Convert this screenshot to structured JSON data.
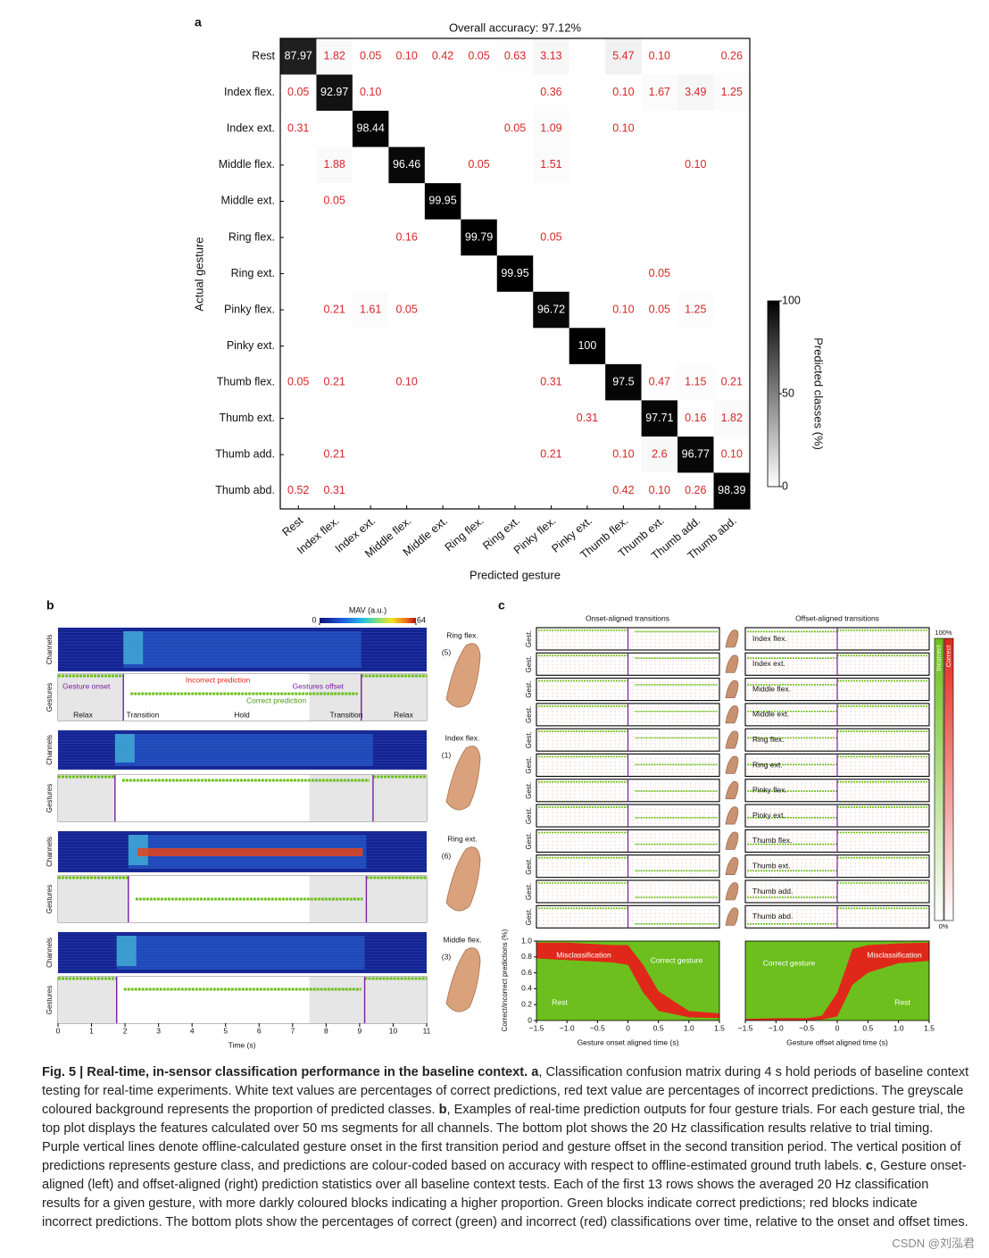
{
  "panel_a": {
    "label": "a",
    "title": "Overall accuracy: 97.12%",
    "xlabel": "Predicted gesture",
    "ylabel": "Actual gesture",
    "categories": [
      "Rest",
      "Index flex.",
      "Index ext.",
      "Middle flex.",
      "Middle ext.",
      "Ring flex.",
      "Ring ext.",
      "Pinky flex.",
      "Pinky ext.",
      "Thumb flex.",
      "Thumb ext.",
      "Thumb add.",
      "Thumb abd."
    ],
    "values": [
      [
        87.97,
        1.82,
        0.05,
        0.1,
        0.42,
        0.05,
        0.63,
        3.13,
        null,
        5.47,
        0.1,
        null,
        0.26
      ],
      [
        0.05,
        92.97,
        0.1,
        null,
        null,
        null,
        null,
        0.36,
        null,
        0.1,
        1.67,
        3.49,
        1.25
      ],
      [
        0.31,
        null,
        98.44,
        null,
        null,
        null,
        0.05,
        1.09,
        null,
        0.1,
        null,
        null,
        null
      ],
      [
        null,
        1.88,
        null,
        96.46,
        null,
        0.05,
        null,
        1.51,
        null,
        null,
        null,
        0.1,
        null
      ],
      [
        null,
        0.05,
        null,
        null,
        99.95,
        null,
        null,
        null,
        null,
        null,
        null,
        null,
        null
      ],
      [
        null,
        null,
        null,
        0.16,
        null,
        99.79,
        null,
        0.05,
        null,
        null,
        null,
        null,
        null
      ],
      [
        null,
        null,
        null,
        null,
        null,
        null,
        99.95,
        null,
        null,
        null,
        0.05,
        null,
        null
      ],
      [
        null,
        0.21,
        1.61,
        0.05,
        null,
        null,
        null,
        96.72,
        null,
        0.1,
        0.05,
        1.25,
        null
      ],
      [
        null,
        null,
        null,
        null,
        null,
        null,
        null,
        null,
        100,
        null,
        null,
        null,
        null
      ],
      [
        0.05,
        0.21,
        null,
        0.1,
        null,
        null,
        null,
        0.31,
        null,
        97.5,
        0.47,
        1.15,
        0.21
      ],
      [
        null,
        null,
        null,
        null,
        null,
        null,
        null,
        null,
        0.31,
        null,
        97.71,
        0.16,
        1.82
      ],
      [
        null,
        0.21,
        null,
        null,
        null,
        null,
        null,
        0.21,
        null,
        0.1,
        2.6,
        96.77,
        0.1
      ],
      [
        0.52,
        0.31,
        null,
        null,
        null,
        null,
        null,
        null,
        null,
        0.42,
        0.1,
        0.26,
        98.39
      ]
    ],
    "value_labels": [
      [
        "87.97",
        "1.82",
        "0.05",
        "0.10",
        "0.42",
        "0.05",
        "0.63",
        "3.13",
        null,
        "5.47",
        "0.10",
        null,
        "0.26"
      ],
      [
        "0.05",
        "92.97",
        "0.10",
        null,
        null,
        null,
        null,
        "0.36",
        null,
        "0.10",
        "1.67",
        "3.49",
        "1.25"
      ],
      [
        "0.31",
        null,
        "98.44",
        null,
        null,
        null,
        "0.05",
        "1.09",
        null,
        "0.10",
        null,
        null,
        null
      ],
      [
        null,
        "1.88",
        null,
        "96.46",
        null,
        "0.05",
        null,
        "1.51",
        null,
        null,
        null,
        "0.10",
        null
      ],
      [
        null,
        "0.05",
        null,
        null,
        "99.95",
        null,
        null,
        null,
        null,
        null,
        null,
        null,
        null
      ],
      [
        null,
        null,
        null,
        "0.16",
        null,
        "99.79",
        null,
        "0.05",
        null,
        null,
        null,
        null,
        null
      ],
      [
        null,
        null,
        null,
        null,
        null,
        null,
        "99.95",
        null,
        null,
        null,
        "0.05",
        null,
        null
      ],
      [
        null,
        "0.21",
        "1.61",
        "0.05",
        null,
        null,
        null,
        "96.72",
        null,
        "0.10",
        "0.05",
        "1.25",
        null
      ],
      [
        null,
        null,
        null,
        null,
        null,
        null,
        null,
        null,
        "100",
        null,
        null,
        null,
        null
      ],
      [
        "0.05",
        "0.21",
        null,
        "0.10",
        null,
        null,
        null,
        "0.31",
        null,
        "97.5",
        "0.47",
        "1.15",
        "0.21"
      ],
      [
        null,
        null,
        null,
        null,
        null,
        null,
        null,
        null,
        "0.31",
        null,
        "97.71",
        "0.16",
        "1.82"
      ],
      [
        null,
        "0.21",
        null,
        null,
        null,
        null,
        null,
        "0.21",
        null,
        "0.10",
        "2.6",
        "96.77",
        "0.10"
      ],
      [
        "0.52",
        "0.31",
        null,
        null,
        null,
        null,
        null,
        null,
        null,
        "0.42",
        "0.10",
        "0.26",
        "98.39"
      ]
    ],
    "error_color": "#d62728",
    "colorbar": {
      "label": "Predicted classes (%)",
      "lim": [
        0,
        100
      ],
      "ticks": [
        0,
        50,
        100
      ]
    }
  },
  "panel_b": {
    "label": "b",
    "colorbar": {
      "label": "MAV (a.u.)",
      "lim": [
        0,
        64
      ],
      "ticks": [
        0,
        64
      ]
    },
    "channels_label": "Channels",
    "gestures_label": "Gestures",
    "xlabel": "Time (s)",
    "xlim": [
      0,
      11
    ],
    "xticks": [
      0,
      1,
      2,
      3,
      4,
      5,
      6,
      7,
      8,
      9,
      10,
      11
    ],
    "trials": [
      {
        "gesture": "Ring flex.",
        "number": "(5)",
        "class": 5,
        "onset": 1.95,
        "offset": 9.05
      },
      {
        "gesture": "Index flex.",
        "number": "(1)",
        "class": 1,
        "onset": 1.7,
        "offset": 9.4
      },
      {
        "gesture": "Ring ext.",
        "number": "(6)",
        "class": 6,
        "onset": 2.1,
        "offset": 9.2
      },
      {
        "gesture": "Middle flex.",
        "number": "(3)",
        "class": 3,
        "onset": 1.75,
        "offset": 9.15
      }
    ],
    "annotations": {
      "onset": "Gesture onset",
      "incorrect": "Incorrect prediction",
      "offset": "Gestures offset",
      "correct": "Correct prediction"
    },
    "phases": [
      "Relax",
      "Transition",
      "Hold",
      "Transition",
      "Relax"
    ]
  },
  "panel_c": {
    "label": "c",
    "onset_title": "Onset-aligned transitions",
    "offset_title": "Offset-aligned transitions",
    "row_label": "Gest.",
    "gestures": [
      "Index flex.",
      "Index ext.",
      "Middle flex.",
      "Middle ext.",
      "Ring flex.",
      "Ring ext.",
      "Pinky flex.",
      "Pinky ext.",
      "Thumb flex.",
      "Thumb ext.",
      "Thumb add.",
      "Thumb abd."
    ],
    "colorbar": {
      "incorrect": "Incorrect",
      "correct": "Correct",
      "top": "100%",
      "bottom": "0%"
    },
    "ylabel": "Correct/incorrect predictions (%)",
    "ylim": [
      0,
      1
    ],
    "yticks": [
      0,
      0.2,
      0.4,
      0.6,
      0.8,
      {
        "value": 1,
        "label": "1.0"
      }
    ],
    "xlim": [
      -1.5,
      1.5
    ],
    "xticks": [
      {
        "value": -1.5,
        "label": "−1.5"
      },
      {
        "value": -1,
        "label": "−1.0"
      },
      {
        "value": -0.5,
        "label": "−0.5"
      },
      0,
      0.5,
      {
        "value": 1,
        "label": "1.0"
      },
      1.5
    ],
    "onset_plot": {
      "xlabel": "Gesture onset aligned time (s)",
      "x": [
        -1.5,
        -1,
        -0.5,
        -0.25,
        0,
        0.25,
        0.5,
        1,
        1.5
      ],
      "rest": [
        0.78,
        0.76,
        0.74,
        0.73,
        0.7,
        0.35,
        0.12,
        0.04,
        0.03
      ],
      "misclassification": [
        0.2,
        0.22,
        0.22,
        0.22,
        0.25,
        0.35,
        0.25,
        0.08,
        0.06
      ],
      "annotations": {
        "misclassification": "Misclassification",
        "correct": "Correct gesture",
        "rest": "Rest"
      }
    },
    "offset_plot": {
      "xlabel": "Gesture offset aligned time (s)",
      "x": [
        -1.5,
        -1,
        -0.5,
        -0.25,
        0,
        0.25,
        0.5,
        1,
        1.5
      ],
      "rest": [
        0,
        0,
        0,
        0.01,
        0.05,
        0.45,
        0.6,
        0.72,
        0.75
      ],
      "misclassification": [
        0.02,
        0.03,
        0.03,
        0.05,
        0.3,
        0.45,
        0.35,
        0.25,
        0.23
      ],
      "annotations": {
        "misclassification": "Misclassification",
        "correct": "Correct gesture",
        "rest": "Rest"
      }
    },
    "correct_color": "#6cbf1c",
    "incorrect_color": "#e0281a"
  },
  "caption": {
    "title": "Fig. 5 | Real-time, in-sensor classification performance in the baseline context.",
    "parts": [
      {
        "label": "a",
        "text": ", Classification confusion matrix during 4 s hold periods of baseline context testing for real-time experiments. White text values are percentages of correct predictions, red text value are percentages of incorrect predictions. The greyscale coloured background represents the proportion of predicted classes."
      },
      {
        "label": "b",
        "text": ", Examples of real-time prediction outputs for four gesture trials. For each gesture trial, the top plot displays the features calculated over 50 ms segments for all channels. The bottom plot shows the 20 Hz classification results relative to trial timing. Purple vertical lines denote offline-calculated gesture onset in the first transition period and gesture offset in the second transition period. The vertical position of predictions represents gesture class, and predictions are colour-coded based on accuracy with respect to offline-estimated ground truth labels."
      },
      {
        "label": "c",
        "text": ", Gesture onset-aligned (left) and offset-aligned (right) prediction statistics over all baseline context tests. Each of the first 13 rows shows the averaged 20 Hz classification results for a given gesture, with more darkly coloured blocks indicating a higher proportion. Green blocks indicate correct predictions; red blocks indicate incorrect predictions. The bottom plots show the percentages of correct (green) and incorrect (red) classifications over time, relative to the onset and offset times."
      }
    ]
  },
  "watermark": "CSDN @刘泓君"
}
